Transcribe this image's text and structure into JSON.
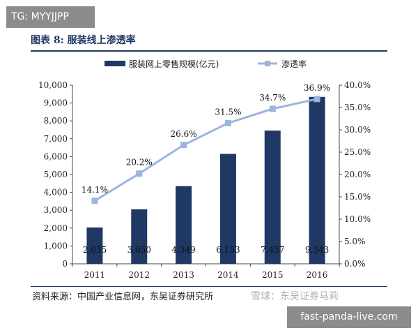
{
  "overlay": {
    "top_tag": "TG: MYYJJPP",
    "bottom_tag": "fast-panda-live.com",
    "watermark": "雪球：东吴证券马莉"
  },
  "figure": {
    "title": "图表 8:  服装线上渗透率",
    "source": "资料来源：中国产业信息网，东吴证券研究所"
  },
  "chart_data": {
    "type": "bar",
    "categories": [
      "2011",
      "2012",
      "2013",
      "2014",
      "2015",
      "2016"
    ],
    "series": [
      {
        "name": "服装网上零售规模(亿元)",
        "type": "bar",
        "axis": "left",
        "values": [
          2035,
          3050,
          4349,
          6153,
          7457,
          9343
        ],
        "labels": [
          "2,035",
          "3,050",
          "4,349",
          "6,153",
          "7,457",
          "9,343"
        ],
        "color": "#1f3864"
      },
      {
        "name": "渗透率",
        "type": "line",
        "axis": "right",
        "values": [
          14.1,
          20.2,
          26.6,
          31.5,
          34.7,
          36.9
        ],
        "labels": [
          "14.1%",
          "20.2%",
          "26.6%",
          "31.5%",
          "34.7%",
          "36.9%"
        ],
        "color": "#9db4dd"
      }
    ],
    "y_left": {
      "lim": [
        0,
        10000
      ],
      "ticks": [
        "0",
        "1,000",
        "2,000",
        "3,000",
        "4,000",
        "5,000",
        "6,000",
        "7,000",
        "8,000",
        "9,000",
        "10,000"
      ]
    },
    "y_right": {
      "lim": [
        0,
        40
      ],
      "ticks": [
        "0.0%",
        "5.0%",
        "10.0%",
        "15.0%",
        "20.0%",
        "25.0%",
        "30.0%",
        "35.0%",
        "40.0%"
      ]
    },
    "legend": "top",
    "grid": false
  }
}
